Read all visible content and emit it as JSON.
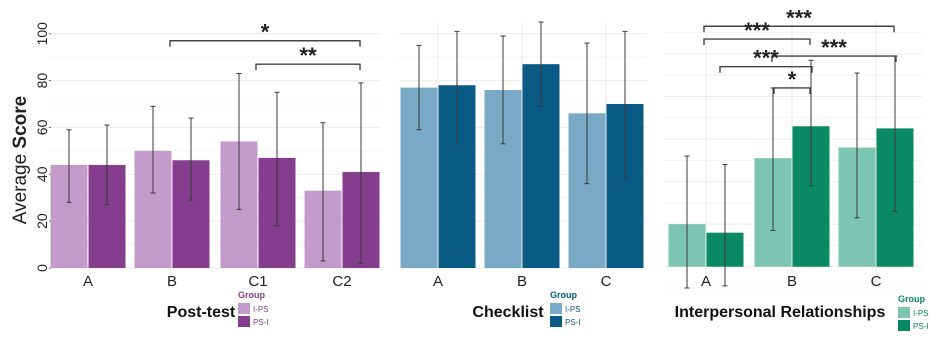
{
  "y_axis_label": {
    "prefix": "Average ",
    "emphasis": "Score"
  },
  "chart_data": [
    {
      "type": "bar",
      "title": "Post-test",
      "categories": [
        "A",
        "B",
        "C1",
        "C2"
      ],
      "ylim": [
        0,
        105
      ],
      "yticks": [
        0,
        20,
        40,
        60,
        80,
        100
      ],
      "legend_title": "Group",
      "legend_position": "bottom-right",
      "grid": true,
      "series": [
        {
          "name": "I-PS",
          "color": "#c39bcb",
          "values": [
            44,
            50,
            54,
            33
          ],
          "lower": [
            28,
            32,
            25,
            3
          ],
          "upper": [
            59,
            69,
            83,
            62
          ]
        },
        {
          "name": "PS-I",
          "color": "#853e8d",
          "values": [
            44,
            46,
            47,
            41
          ],
          "lower": [
            27,
            29,
            18,
            2
          ],
          "upper": [
            61,
            64,
            75,
            79
          ]
        }
      ],
      "significance": [
        {
          "label": "*",
          "from": "B",
          "to": "C2",
          "y": 97
        },
        {
          "label": "**",
          "from": "C1",
          "to": "C2",
          "y": 87
        }
      ]
    },
    {
      "type": "bar",
      "title": "Checklist",
      "categories": [
        "A",
        "B",
        "C"
      ],
      "ylim": [
        0,
        105
      ],
      "legend_title": "Group",
      "legend_position": "bottom-right",
      "grid": true,
      "series": [
        {
          "name": "I-PS",
          "color": "#7aa9c6",
          "values": [
            77,
            76,
            66
          ],
          "lower": [
            59,
            53,
            36
          ],
          "upper": [
            95,
            99,
            96
          ]
        },
        {
          "name": "PS-I",
          "color": "#0a5a86",
          "values": [
            78,
            87,
            70
          ],
          "lower": [
            54,
            69,
            38
          ],
          "upper": [
            101,
            105,
            101
          ]
        }
      ]
    },
    {
      "type": "bar",
      "title": "Interpersonal Relationships",
      "categories": [
        "A",
        "B",
        "C"
      ],
      "ylim": [
        -10,
        115
      ],
      "legend_title": "Group",
      "legend_position": "bottom-right",
      "grid": true,
      "series": [
        {
          "name": "I-PS",
          "color": "#7cc5b1",
          "values": [
            20,
            51,
            56
          ],
          "lower": [
            -10,
            17,
            23
          ],
          "upper": [
            52,
            84,
            91
          ]
        },
        {
          "name": "PS-I",
          "color": "#0a8a63",
          "values": [
            16,
            66,
            65
          ],
          "lower": [
            -9,
            38,
            26
          ],
          "upper": [
            48,
            97,
            99
          ]
        }
      ],
      "significance": [
        {
          "label": "***",
          "from": "A",
          "to": "C",
          "y": 113
        },
        {
          "label": "***",
          "from": "A",
          "to": "B",
          "y": 107
        },
        {
          "label": "***",
          "from": "B",
          "to": "C",
          "y": 99
        },
        {
          "label": "***",
          "from": "A",
          "to": "B",
          "y": 94
        },
        {
          "label": "*",
          "from": "B",
          "to": "B",
          "y": 84
        }
      ]
    }
  ]
}
